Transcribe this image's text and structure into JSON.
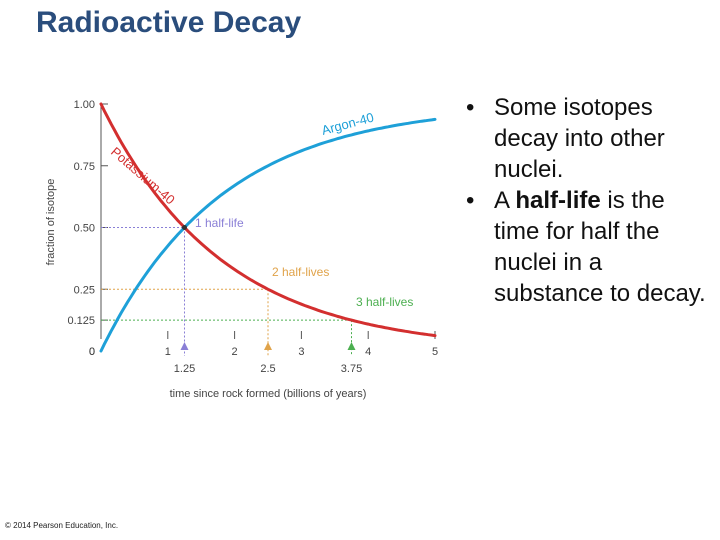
{
  "slide": {
    "title": "Radioactive Decay",
    "copyright": "© 2014 Pearson Education, Inc."
  },
  "bullets": [
    {
      "marker": "•",
      "parts": [
        {
          "text": "Some isotopes decay into other nuclei.",
          "bold": false
        }
      ]
    },
    {
      "marker": "•",
      "parts": [
        {
          "text": "A ",
          "bold": false
        },
        {
          "text": "half-life",
          "bold": true
        },
        {
          "text": " is the time for half the nuclei in a substance to decay.",
          "bold": false
        }
      ]
    }
  ],
  "chart_data": {
    "type": "line",
    "title": "",
    "xlabel": "time since rock formed (billions of years)",
    "ylabel": "fraction of isotope",
    "xlim": [
      0,
      5
    ],
    "ylim": [
      0,
      1
    ],
    "x_ticks": [
      0,
      1,
      2,
      3,
      4,
      5
    ],
    "x_tick_labels": [
      "0",
      "1",
      "2",
      "3",
      "4",
      "5"
    ],
    "y_ticks": [
      0,
      0.125,
      0.25,
      0.5,
      0.75,
      1.0
    ],
    "y_tick_labels": [
      "0",
      "0.125",
      "0.25",
      "0.50",
      "0.75",
      "1.00"
    ],
    "half_life": 1.25,
    "series": [
      {
        "name": "Potassium-40",
        "color": "#d32f2f",
        "x": [
          0,
          0.25,
          0.5,
          0.75,
          1.0,
          1.25,
          1.5,
          1.75,
          2.0,
          2.25,
          2.5,
          2.75,
          3.0,
          3.25,
          3.5,
          3.75,
          4.0,
          4.25,
          4.5,
          4.75,
          5.0
        ],
        "y": [
          1.0,
          0.871,
          0.758,
          0.66,
          0.574,
          0.5,
          0.435,
          0.379,
          0.33,
          0.287,
          0.25,
          0.218,
          0.189,
          0.165,
          0.144,
          0.125,
          0.109,
          0.095,
          0.082,
          0.072,
          0.0625
        ]
      },
      {
        "name": "Argon-40",
        "color": "#1ea0d8",
        "x": [
          0,
          0.25,
          0.5,
          0.75,
          1.0,
          1.25,
          1.5,
          1.75,
          2.0,
          2.25,
          2.5,
          2.75,
          3.0,
          3.25,
          3.5,
          3.75,
          4.0,
          4.25,
          4.5,
          4.75,
          5.0
        ],
        "y": [
          0.0,
          0.129,
          0.242,
          0.34,
          0.426,
          0.5,
          0.565,
          0.621,
          0.67,
          0.713,
          0.75,
          0.782,
          0.811,
          0.835,
          0.856,
          0.875,
          0.891,
          0.905,
          0.918,
          0.928,
          0.9375
        ]
      }
    ],
    "markers": [
      {
        "x": 1.25,
        "y": 0.5,
        "x_label": "1.25",
        "label": "1 half-life",
        "color": "#8a7fd6"
      },
      {
        "x": 2.5,
        "y": 0.25,
        "x_label": "2.5",
        "label": "2 half-lives",
        "color": "#e0a34a"
      },
      {
        "x": 3.75,
        "y": 0.125,
        "x_label": "3.75",
        "label": "3 half-lives",
        "color": "#4caf50"
      }
    ]
  }
}
